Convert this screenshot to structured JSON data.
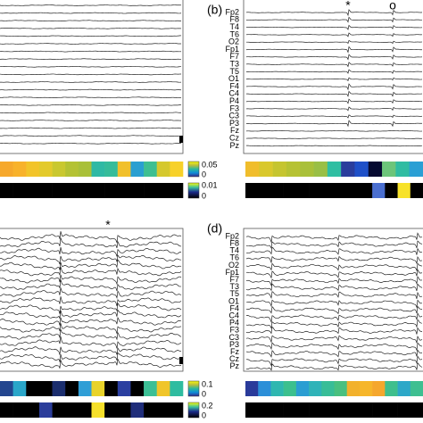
{
  "panel_a": {
    "colorbar_top": {
      "ticks": [
        "0.05",
        "0"
      ]
    },
    "colorbar_bottom": {
      "ticks": [
        "0.01",
        "0"
      ]
    },
    "strip_top": [
      "#f6a82c",
      "#f8b22b",
      "#f2c42a",
      "#e3ca2b",
      "#c9c82f",
      "#b4c233",
      "#a9c039",
      "#2fb9a4",
      "#35bc9a",
      "#f1c02b",
      "#2a9fd1",
      "#3ebf91",
      "#d5c82e",
      "#f7d12a"
    ],
    "strip_bottom": [
      "#000000",
      "#000000",
      "#000000",
      "#000000",
      "#000000",
      "#000000",
      "#000000",
      "#000000",
      "#000000",
      "#000000",
      "#000000",
      "#000000",
      "#000000",
      "#000000"
    ]
  },
  "panel_b": {
    "label": "(b)",
    "markers": [
      "*",
      "o"
    ],
    "channels": [
      "Fp2",
      "F8",
      "T4",
      "T6",
      "O2",
      "Fp1",
      "F7",
      "T3",
      "T5",
      "O1",
      "F4",
      "C4",
      "P4",
      "F3",
      "C3",
      "P3",
      "Fz",
      "Cz",
      "Pz"
    ],
    "strip_top": [
      "#f0bd2c",
      "#d9c82d",
      "#c5c530",
      "#b6c233",
      "#a9c039",
      "#99bf45",
      "#2fbea2",
      "#2a3d9c",
      "#1f50c8",
      "#050a30",
      "#6cc57a",
      "#30bca2",
      "#2a9fd4"
    ],
    "strip_bottom": [
      "#000000",
      "#000000",
      "#000000",
      "#000000",
      "#000000",
      "#000000",
      "#000000",
      "#000000",
      "#000000",
      "#000000",
      "#4a6fd0",
      "#000000",
      "#f7e22a",
      "#000000"
    ]
  },
  "panel_c": {
    "marker": "*",
    "colorbar_top": {
      "ticks": [
        "0.1",
        "0"
      ]
    },
    "colorbar_bottom": {
      "ticks": [
        "0.2",
        "0"
      ]
    },
    "strip_top": [
      "#23468f",
      "#2aa6c9",
      "#000000",
      "#000000",
      "#1b2e6e",
      "#000000",
      "#2f9ed6",
      "#e8d32a",
      "#000000",
      "#2b3fa0",
      "#000000",
      "#3cbf95",
      "#f0c52a",
      "#2fbca0"
    ],
    "strip_bottom": [
      "#000000",
      "#000000",
      "#000000",
      "#2b3d9a",
      "#000000",
      "#000000",
      "#000000",
      "#f5e02b",
      "#000000",
      "#000000",
      "#1f2d7a",
      "#000000",
      "#000000",
      "#000000"
    ]
  },
  "panel_d": {
    "label": "(d)",
    "channels": [
      "Fp2",
      "F8",
      "T4",
      "T6",
      "O2",
      "Fp1",
      "F7",
      "T3",
      "T5",
      "O1",
      "F4",
      "C4",
      "P4",
      "F3",
      "C3",
      "P3",
      "Fz",
      "Cz",
      "Pz"
    ],
    "strip_top": [
      "#2a3b9a",
      "#2c8fd8",
      "#2fb7b0",
      "#3cc08e",
      "#2b9ed2",
      "#2fb3b8",
      "#38bd97",
      "#49c07f",
      "#f2b12c",
      "#f6b62a",
      "#f5a72d",
      "#3fbf8d",
      "#2da8c8",
      "#3ebf91"
    ],
    "strip_bottom": [
      "#000000",
      "#000000",
      "#000000",
      "#000000",
      "#000000",
      "#000000",
      "#000000",
      "#000000",
      "#000000",
      "#000000",
      "#000000",
      "#000000",
      "#000000",
      "#000000"
    ]
  }
}
